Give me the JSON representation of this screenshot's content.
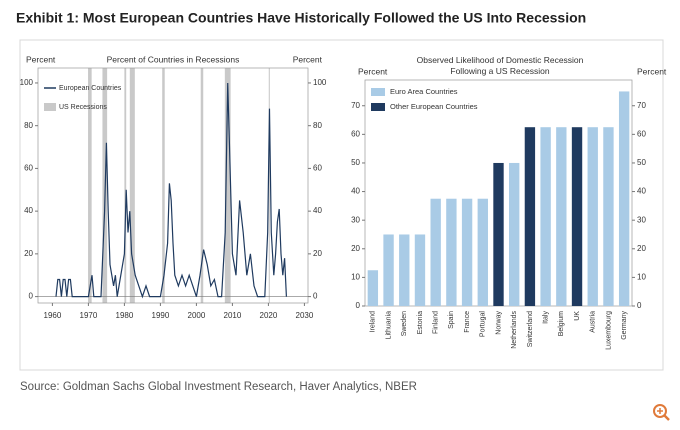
{
  "title": "Exhibit 1: Most European Countries Have Historically Followed the US Into Recession",
  "source": "Source: Goldman Sachs Global Investment Research, Haver Analytics, NBER",
  "chart_data": [
    {
      "type": "line",
      "title": "Percent of Countries in Recessions",
      "ylabel": "Percent",
      "y2label": "Percent",
      "x": [
        1961,
        1961.5,
        1962,
        1962.5,
        1963,
        1963.5,
        1964,
        1964.5,
        1965,
        1965.5,
        1970,
        1970.5,
        1971,
        1971.5,
        1973.5,
        1974,
        1974.5,
        1975,
        1975.5,
        1976,
        1977,
        1977.5,
        1978,
        1980,
        1980.5,
        1981,
        1981.5,
        1982,
        1983,
        1984,
        1985,
        1986,
        1987,
        1990,
        1991,
        1992,
        1992.5,
        1993,
        1993.5,
        1994,
        1995,
        1996,
        1997,
        1998,
        1999,
        2000,
        2001,
        2002,
        2003,
        2004,
        2005,
        2006,
        2007,
        2008,
        2008.7,
        2009.2,
        2010,
        2011,
        2012,
        2013,
        2014,
        2015,
        2016,
        2017,
        2019,
        2019.8,
        2020.3,
        2020.8,
        2021.5,
        2022,
        2022.5,
        2023,
        2023.5,
        2024,
        2024.5,
        2025
      ],
      "series": [
        {
          "name": "European Countries",
          "color": "#1f3a5f",
          "values": [
            0,
            8,
            8,
            0,
            8,
            8,
            0,
            8,
            8,
            0,
            0,
            5,
            10,
            0,
            0,
            20,
            40,
            72,
            40,
            15,
            5,
            10,
            0,
            20,
            50,
            30,
            40,
            20,
            10,
            5,
            0,
            5,
            0,
            0,
            10,
            25,
            53,
            45,
            25,
            10,
            5,
            10,
            5,
            10,
            5,
            0,
            10,
            22,
            15,
            5,
            8,
            0,
            0,
            30,
            100,
            70,
            20,
            10,
            45,
            30,
            10,
            20,
            5,
            0,
            0,
            30,
            88,
            30,
            10,
            20,
            35,
            41,
            20,
            10,
            18,
            0
          ]
        }
      ],
      "shaded": {
        "name": "US Recessions",
        "color": "#c9c9c9",
        "ranges": [
          [
            1969.9,
            1970.9
          ],
          [
            1973.9,
            1975.2
          ],
          [
            1980,
            1980.5
          ],
          [
            1981.5,
            1982.9
          ],
          [
            1990.5,
            1991.2
          ],
          [
            2001.2,
            2001.9
          ],
          [
            2007.9,
            2009.5
          ],
          [
            2020.1,
            2020.4
          ]
        ]
      },
      "xlim": [
        1956,
        2031
      ],
      "xticks": [
        1960,
        1970,
        1980,
        1990,
        2000,
        2010,
        2020,
        2030
      ],
      "ylim": [
        -3,
        107
      ],
      "yticks": [
        0,
        20,
        40,
        60,
        80,
        100
      ],
      "y2lim": [
        -3,
        107
      ],
      "y2ticks": [
        0,
        20,
        40,
        60,
        80,
        100
      ]
    },
    {
      "type": "bar",
      "title": "Observed Likelihood of Domestic Recession Following a US Recession",
      "ylabel": "Percent",
      "y2label": "Percent",
      "categories": [
        "Ireland",
        "Lithuania",
        "Sweden",
        "Estonia",
        "Finland",
        "Spain",
        "France",
        "Portugal",
        "Norway",
        "Netherlands",
        "Switzerland",
        "Italy",
        "Belgium",
        "UK",
        "Austria",
        "Luxembourg",
        "Germany"
      ],
      "series": [
        {
          "name": "Euro Area Countries",
          "color": "#a9cbe6",
          "values": [
            12.5,
            25,
            25,
            25,
            37.5,
            37.5,
            37.5,
            37.5,
            null,
            50,
            null,
            62.5,
            62.5,
            null,
            62.5,
            62.5,
            75
          ]
        },
        {
          "name": "Other European Countries",
          "color": "#1f3a5f",
          "values": [
            null,
            null,
            null,
            null,
            null,
            null,
            null,
            null,
            50,
            null,
            62.5,
            null,
            null,
            62.5,
            null,
            null,
            null
          ]
        }
      ],
      "ylim": [
        0,
        79
      ],
      "yticks": [
        0,
        10,
        20,
        30,
        40,
        50,
        60,
        70
      ],
      "y2lim": [
        0,
        79
      ],
      "y2ticks": [
        0,
        10,
        20,
        30,
        40,
        50,
        60,
        70
      ]
    }
  ]
}
